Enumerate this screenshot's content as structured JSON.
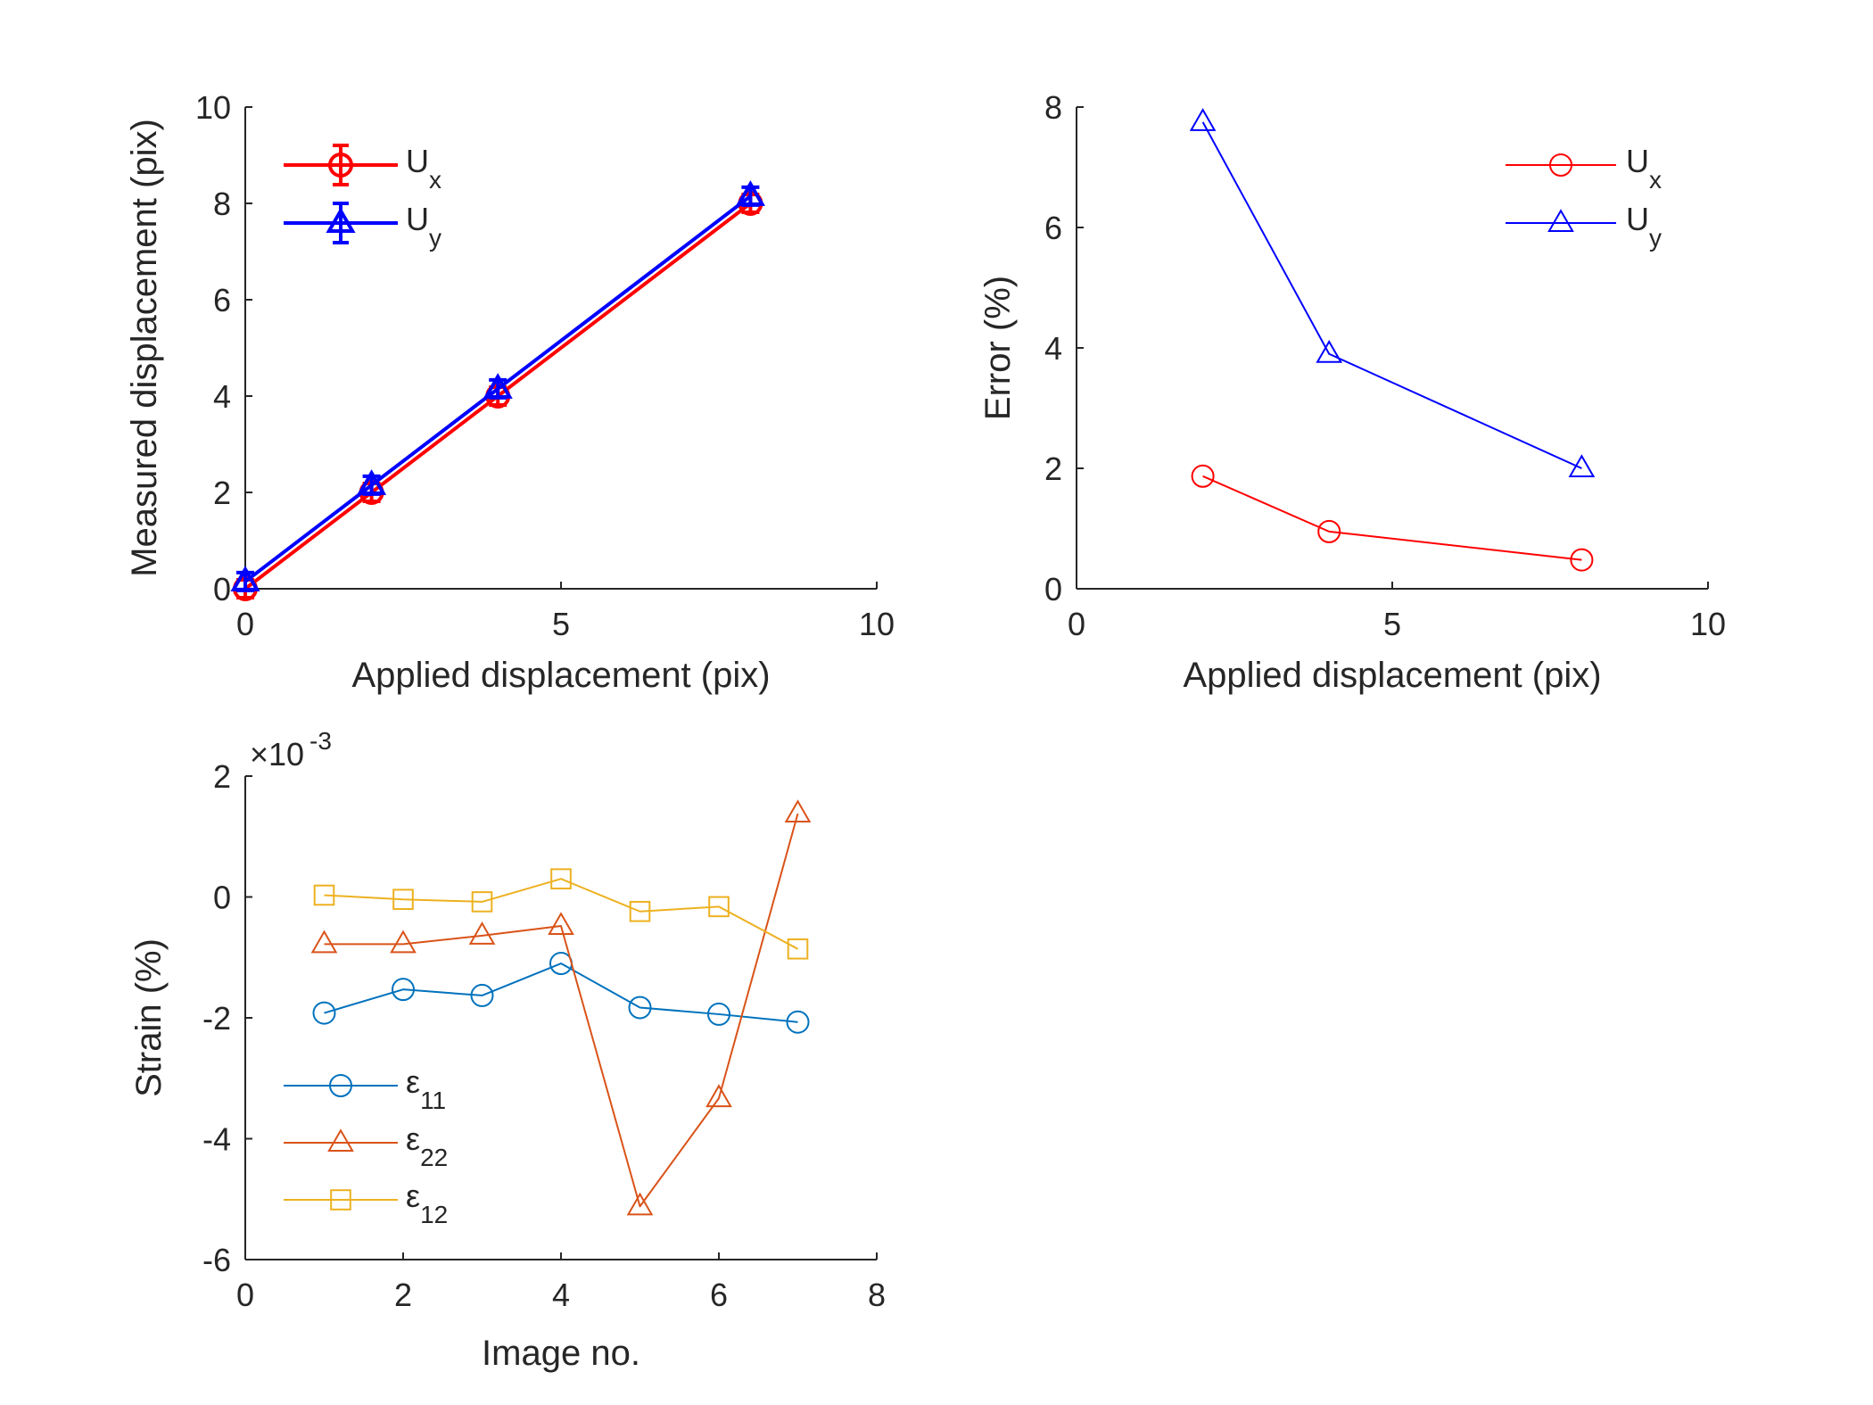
{
  "chart_data": [
    {
      "type": "line",
      "xlabel": "Applied displacement (pix)",
      "ylabel": "Measured displacement (pix)",
      "xlim": [
        0,
        10
      ],
      "ylim": [
        0,
        10
      ],
      "xticks": [
        "0",
        "5",
        "10"
      ],
      "yticks": [
        "0",
        "2",
        "4",
        "6",
        "8",
        "10"
      ],
      "grid": false,
      "legend_position": "top-left",
      "series": [
        {
          "name": "U_x",
          "label_main": "U",
          "label_sub": "x",
          "color": "#ff0000",
          "marker": "circle",
          "x": [
            0,
            2,
            4,
            8
          ],
          "y": [
            0.0,
            2.0,
            4.0,
            8.0
          ]
        },
        {
          "name": "U_y",
          "label_main": "U",
          "label_sub": "y",
          "color": "#0000ff",
          "marker": "triangle",
          "x": [
            0,
            2,
            4,
            8
          ],
          "y": [
            0.15,
            2.15,
            4.15,
            8.15
          ]
        }
      ]
    },
    {
      "type": "line",
      "xlabel": "Applied displacement (pix)",
      "ylabel": "Error (%)",
      "xlim": [
        0,
        10
      ],
      "ylim": [
        0,
        8
      ],
      "xticks": [
        "0",
        "5",
        "10"
      ],
      "yticks": [
        "0",
        "2",
        "4",
        "6",
        "8"
      ],
      "grid": false,
      "legend_position": "top-right",
      "series": [
        {
          "name": "U_x",
          "label_main": "U",
          "label_sub": "x",
          "color": "#ff0000",
          "marker": "circle",
          "x": [
            2,
            4,
            8
          ],
          "y": [
            1.87,
            0.95,
            0.48
          ]
        },
        {
          "name": "U_y",
          "label_main": "U",
          "label_sub": "y",
          "color": "#0000ff",
          "marker": "triangle",
          "x": [
            2,
            4,
            8
          ],
          "y": [
            7.75,
            3.9,
            2.0
          ]
        }
      ]
    },
    {
      "type": "line",
      "xlabel": "Image no.",
      "ylabel": "Strain (%)",
      "exponent_label": "×10",
      "exponent_power": "-3",
      "xlim": [
        0,
        8
      ],
      "ylim": [
        -6,
        2
      ],
      "xticks": [
        "0",
        "2",
        "4",
        "6",
        "8"
      ],
      "yticks": [
        "-6",
        "-4",
        "-2",
        "0",
        "2"
      ],
      "grid": false,
      "legend_position": "bottom-left",
      "series": [
        {
          "name": "ε_11",
          "label_main": "ε",
          "label_sub": "11",
          "color": "#0072bd",
          "marker": "circle",
          "x": [
            1,
            2,
            3,
            4,
            5,
            6,
            7
          ],
          "y": [
            -1.92,
            -1.53,
            -1.63,
            -1.1,
            -1.83,
            -1.94,
            -2.07
          ]
        },
        {
          "name": "ε_22",
          "label_main": "ε",
          "label_sub": "22",
          "color": "#d95319",
          "marker": "triangle",
          "x": [
            1,
            2,
            3,
            4,
            5,
            6,
            7
          ],
          "y": [
            -0.78,
            -0.78,
            -0.64,
            -0.48,
            -5.12,
            -3.33,
            1.38
          ]
        },
        {
          "name": "ε_12",
          "label_main": "ε",
          "label_sub": "12",
          "color": "#edb120",
          "marker": "square",
          "x": [
            1,
            2,
            3,
            4,
            5,
            6,
            7
          ],
          "y": [
            0.03,
            -0.04,
            -0.08,
            0.3,
            -0.24,
            -0.16,
            -0.86
          ]
        }
      ]
    }
  ]
}
